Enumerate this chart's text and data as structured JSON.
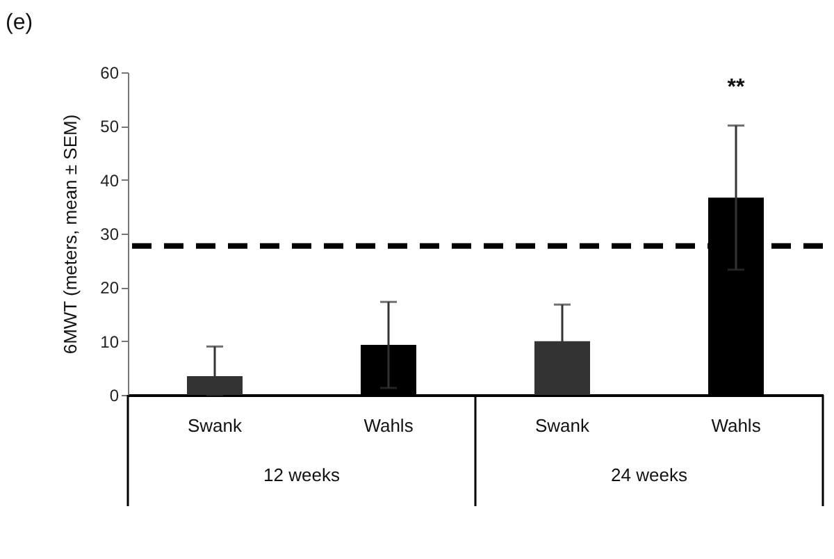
{
  "chart_data": {
    "type": "bar",
    "title": "(e)",
    "ylabel": "6MWT (meters, mean ± SEM)",
    "categories": [
      "Swank",
      "Wahls",
      "Swank",
      "Wahls"
    ],
    "values": [
      3.5,
      9.3,
      10,
      36.7
    ],
    "errors": [
      [
        0,
        9
      ],
      8,
      6.8,
      13.4
    ],
    "colors": [
      "#333333",
      "#000000",
      "#333333",
      "#000000"
    ],
    "ylim": [
      0,
      60
    ],
    "yticks": [
      0,
      10,
      20,
      30,
      40,
      50,
      60
    ],
    "grid": false,
    "ref_lines": [
      {
        "axis": "y",
        "value": 27.7,
        "label": null,
        "color": "#000000",
        "line_style": "dashed"
      }
    ],
    "annotations": [
      "**",
      "12 weeks",
      "24 weeks"
    ]
  }
}
